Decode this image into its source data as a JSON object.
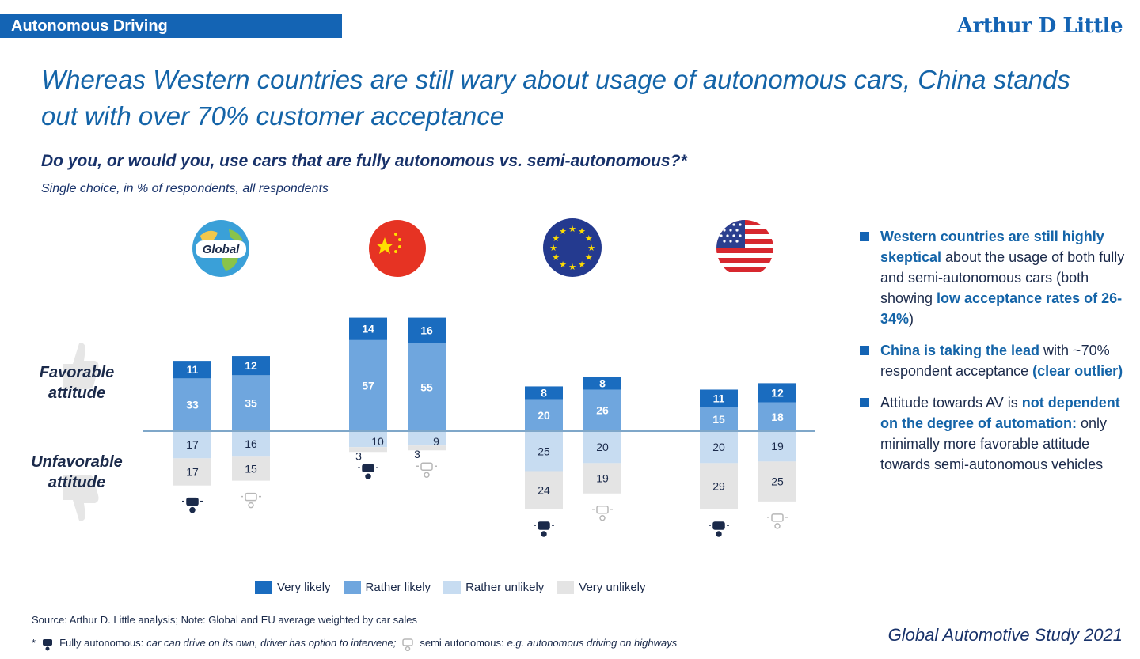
{
  "header": {
    "section_tag": "Autonomous Driving",
    "brand": "Arthur D Little"
  },
  "title": "Whereas Western countries are still wary about usage of autonomous cars, China stands out with over 70% customer acceptance",
  "question": "Do you, or would you, use cars that are fully autonomous vs. semi-autonomous?*",
  "subquestion": "Single choice, in % of respondents, all respondents",
  "attitude_labels": {
    "favorable": "Favorable attitude",
    "unfavorable": "Unfavorable attitude"
  },
  "globe_label": "Global",
  "colors": {
    "very_likely": "#1a6cbf",
    "rather_likely": "#6fa6de",
    "rather_unlikely": "#c7dcf1",
    "very_unlikely": "#e4e4e4",
    "accent": "#1464b4"
  },
  "chart_data": {
    "type": "bar",
    "stacked": "diverging",
    "groups": [
      "Global",
      "China",
      "EU",
      "USA"
    ],
    "sub_categories": [
      "Fully autonomous",
      "Semi autonomous"
    ],
    "series": [
      {
        "name": "Very likely",
        "values": [
          [
            11,
            12
          ],
          [
            14,
            16
          ],
          [
            8,
            8
          ],
          [
            11,
            12
          ]
        ]
      },
      {
        "name": "Rather likely",
        "values": [
          [
            33,
            35
          ],
          [
            57,
            55
          ],
          [
            20,
            26
          ],
          [
            15,
            18
          ]
        ]
      },
      {
        "name": "Rather unlikely",
        "values": [
          [
            17,
            16
          ],
          [
            10,
            9
          ],
          [
            25,
            20
          ],
          [
            20,
            19
          ]
        ]
      },
      {
        "name": "Very unlikely",
        "values": [
          [
            17,
            15
          ],
          [
            3,
            3
          ],
          [
            24,
            19
          ],
          [
            29,
            25
          ]
        ]
      }
    ],
    "legend": [
      "Very likely",
      "Rather likely",
      "Rather unlikely",
      "Very unlikely"
    ]
  },
  "bullets": [
    {
      "bold": "Western countries are still highly skeptical",
      "text": " about the usage of both fully and semi-autonomous cars (both showing ",
      "bold2": "low acceptance rates of 26-34%",
      "text2": ")"
    },
    {
      "bold": "China is taking the lead",
      "text": " with ~70% respondent acceptance ",
      "bold2": "(clear outlier)",
      "text2": ""
    },
    {
      "bold": "",
      "text": "Attitude towards AV is ",
      "bold2": "not dependent on the degree of automation:",
      "text2": " only minimally more favorable attitude towards semi-autonomous vehicles"
    }
  ],
  "source": "Source: Arthur D. Little analysis; Note: Global and EU average weighted by car sales",
  "footnote": {
    "star": "*",
    "fully_label": "Fully autonomous:",
    "fully_desc": "car can drive on its own, driver has option to intervene;",
    "semi_label": "semi autonomous:",
    "semi_desc": "e.g. autonomous driving on highways"
  },
  "study": "Global Automotive Study 2021"
}
